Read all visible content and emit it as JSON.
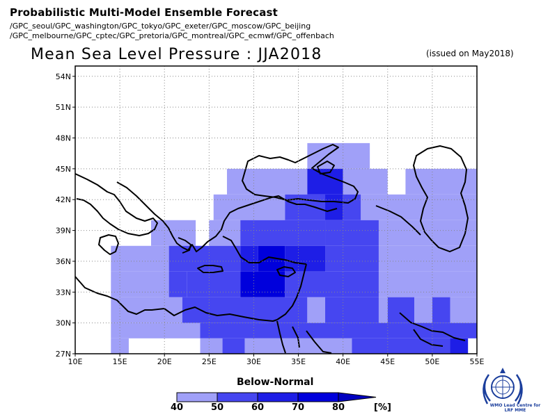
{
  "header": {
    "title": "Probabilistic Multi-Model Ensemble Forecast",
    "centres_line1": "/GPC_seoul/GPC_washington/GPC_tokyo/GPC_exeter/GPC_moscow/GPC_beijing",
    "centres_line2": "/GPC_melbourne/GPC_cptec/GPC_pretoria/GPC_montreal/GPC_ecmwf/GPC_offenbach"
  },
  "map": {
    "title": "Mean Sea Level Pressure : JJA2018",
    "issued": "(issued on May2018)",
    "lon_range": [
      10,
      55
    ],
    "lat_range": [
      27,
      55
    ],
    "lon_labels": [
      "10E",
      "15E",
      "20E",
      "25E",
      "30E",
      "35E",
      "40E",
      "45E",
      "50E",
      "55E"
    ],
    "lat_labels": [
      "27N",
      "30N",
      "33N",
      "36N",
      "39N",
      "42N",
      "45N",
      "48N",
      "51N",
      "54N"
    ],
    "grid": "dotted"
  },
  "colorbar": {
    "title": "Below-Normal",
    "ticks": [
      "40",
      "50",
      "60",
      "70",
      "80"
    ],
    "unit": "[%]",
    "colors": [
      "#a0a0f8",
      "#4646f0",
      "#1e1ee6",
      "#0000dc",
      "#0000c0"
    ]
  },
  "logo": {
    "text_line1": "WMO Lead Centre for",
    "text_line2": "LRF MME"
  },
  "map_data": {
    "cell_size_deg": 2.5,
    "categories": {
      "40-50": "#a0a0f8",
      "50-60": "#4646f0",
      "60-70": "#1e1ee6",
      "70-80": "#0000dc"
    }
  }
}
